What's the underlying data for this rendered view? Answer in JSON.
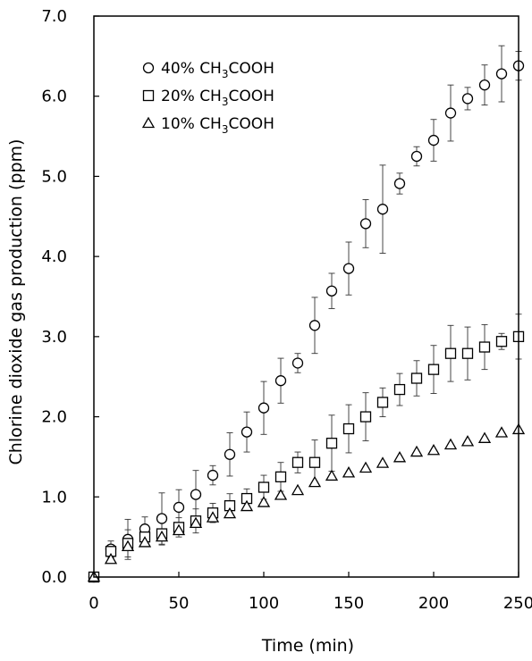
{
  "chart_data": {
    "type": "scatter",
    "xlabel": "Time (min)",
    "ylabel": "Chlorine dioxide gas production (ppm)",
    "xlim": [
      0,
      250
    ],
    "ylim": [
      0,
      7
    ],
    "xticks": [
      0,
      50,
      100,
      150,
      200,
      250
    ],
    "xtick_labels": [
      "0",
      "50",
      "100",
      "150",
      "200",
      "250"
    ],
    "yticks": [
      0,
      1,
      2,
      3,
      4,
      5,
      6,
      7
    ],
    "ytick_labels": [
      "0.0",
      "1.0",
      "2.0",
      "3.0",
      "4.0",
      "5.0",
      "6.0",
      "7.0"
    ],
    "grid": false,
    "legend_position": "top-left",
    "series": [
      {
        "name": "40% CH3COOH",
        "legend": {
          "prefix": "40% CH",
          "sub": "3",
          "suffix": "COOH"
        },
        "marker": "circle",
        "x": [
          0,
          10,
          20,
          30,
          40,
          50,
          60,
          70,
          80,
          90,
          100,
          110,
          120,
          130,
          140,
          150,
          160,
          170,
          180,
          190,
          200,
          210,
          220,
          230,
          240,
          250
        ],
        "y": [
          0.0,
          0.35,
          0.47,
          0.6,
          0.73,
          0.87,
          1.03,
          1.27,
          1.53,
          1.81,
          2.11,
          2.45,
          2.67,
          3.14,
          3.57,
          3.85,
          4.41,
          4.59,
          4.91,
          5.25,
          5.45,
          5.79,
          5.97,
          6.14,
          6.28,
          6.38
        ],
        "err": [
          0.0,
          0.1,
          0.25,
          0.15,
          0.32,
          0.22,
          0.3,
          0.12,
          0.27,
          0.25,
          0.33,
          0.28,
          0.12,
          0.35,
          0.22,
          0.33,
          0.3,
          0.55,
          0.13,
          0.12,
          0.26,
          0.35,
          0.14,
          0.25,
          0.35,
          0.18
        ]
      },
      {
        "name": "20% CH3COOH",
        "legend": {
          "prefix": "20% CH",
          "sub": "3",
          "suffix": "COOH"
        },
        "marker": "square",
        "x": [
          0,
          10,
          20,
          30,
          40,
          50,
          60,
          70,
          80,
          90,
          100,
          110,
          120,
          130,
          140,
          150,
          160,
          170,
          180,
          190,
          200,
          210,
          220,
          230,
          240,
          250
        ],
        "y": [
          0.0,
          0.32,
          0.42,
          0.5,
          0.54,
          0.62,
          0.7,
          0.8,
          0.89,
          0.98,
          1.12,
          1.25,
          1.43,
          1.43,
          1.67,
          1.85,
          2.0,
          2.18,
          2.34,
          2.48,
          2.59,
          2.79,
          2.79,
          2.87,
          2.94,
          3.0
        ],
        "err": [
          0.0,
          0.08,
          0.17,
          0.12,
          0.14,
          0.12,
          0.15,
          0.12,
          0.15,
          0.12,
          0.15,
          0.18,
          0.13,
          0.28,
          0.35,
          0.3,
          0.3,
          0.18,
          0.2,
          0.22,
          0.3,
          0.35,
          0.33,
          0.28,
          0.1,
          0.28
        ]
      },
      {
        "name": "10% CH3COOH",
        "legend": {
          "prefix": "10% CH",
          "sub": "3",
          "suffix": "COOH"
        },
        "marker": "triangle",
        "x": [
          0,
          10,
          20,
          30,
          40,
          50,
          60,
          70,
          80,
          90,
          100,
          110,
          120,
          130,
          140,
          150,
          160,
          170,
          180,
          190,
          200,
          210,
          220,
          230,
          240,
          250
        ],
        "y": [
          0.0,
          0.22,
          0.38,
          0.43,
          0.5,
          0.58,
          0.67,
          0.74,
          0.79,
          0.88,
          0.93,
          1.02,
          1.08,
          1.18,
          1.26,
          1.3,
          1.36,
          1.42,
          1.49,
          1.56,
          1.58,
          1.65,
          1.69,
          1.73,
          1.8,
          1.84
        ]
      }
    ]
  }
}
